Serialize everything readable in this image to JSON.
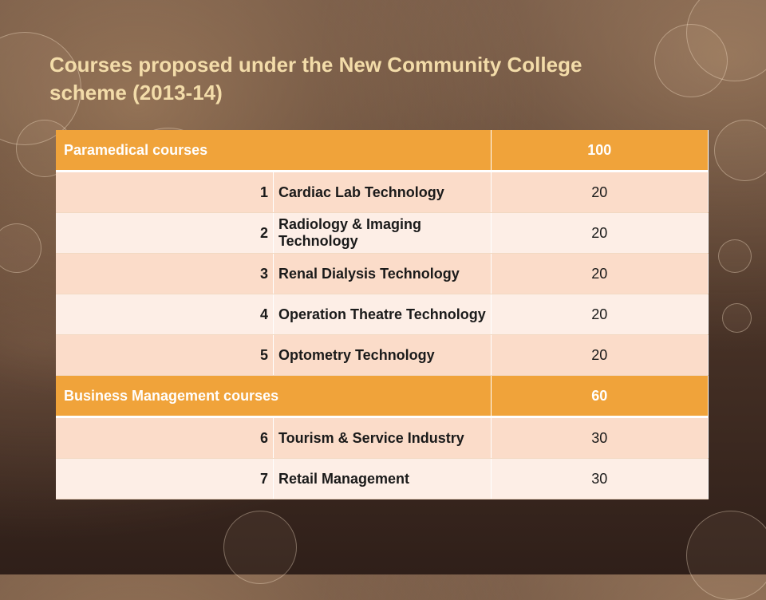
{
  "title": "Courses proposed under the New Community College scheme (2013-14)",
  "table": {
    "paramedical": {
      "label": "Paramedical courses",
      "total": "100",
      "rows": [
        {
          "no": "1",
          "name": "Cardiac Lab Technology",
          "seats": "20"
        },
        {
          "no": "2",
          "name": "Radiology & Imaging Technology",
          "seats": "20"
        },
        {
          "no": "3",
          "name": "Renal Dialysis Technology",
          "seats": "20"
        },
        {
          "no": "4",
          "name": "Operation Theatre Technology",
          "seats": "20"
        },
        {
          "no": "5",
          "name": "Optometry Technology",
          "seats": "20"
        }
      ]
    },
    "business": {
      "label": "Business Management courses",
      "total": "60",
      "rows": [
        {
          "no": "6",
          "name": "Tourism & Service Industry",
          "seats": "30"
        },
        {
          "no": "7",
          "name": "Retail Management",
          "seats": "30"
        }
      ]
    }
  },
  "colors": {
    "title": "#f3dca9",
    "header_bg": "#f0a33a",
    "row_odd": "#fbdcc9",
    "row_even": "#fdeee6"
  }
}
